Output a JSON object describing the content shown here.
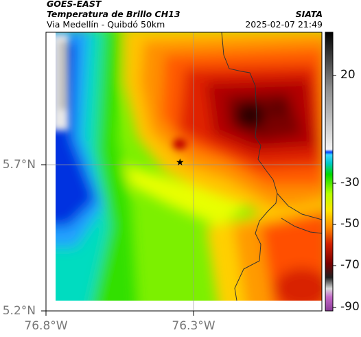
{
  "header": {
    "satellite": "GOES-EAST",
    "product": "Temperatura de Brillo CH13",
    "route": "Via Medellín - Quibdó 50km",
    "org": "SIATA",
    "datetime": "2025-02-07 21:49"
  },
  "axes": {
    "lat_labels": [
      "5.7°N",
      "5.2°N"
    ],
    "lon_labels": [
      "76.8°W",
      "76.3°W"
    ]
  },
  "colorbar": {
    "tick_labels": [
      "20",
      "-30",
      "-50",
      "-70",
      "-90"
    ],
    "stops": [
      "#8a3a98",
      "#b7b7b7",
      "#000000",
      "#7a0000",
      "#d21f00",
      "#ff8a00",
      "#ffe400",
      "#b6ff00",
      "#00d800",
      "#3ad6ff",
      "#0040ff",
      "#f0f0f0",
      "#000000"
    ]
  },
  "map": {
    "marker": "★"
  }
}
